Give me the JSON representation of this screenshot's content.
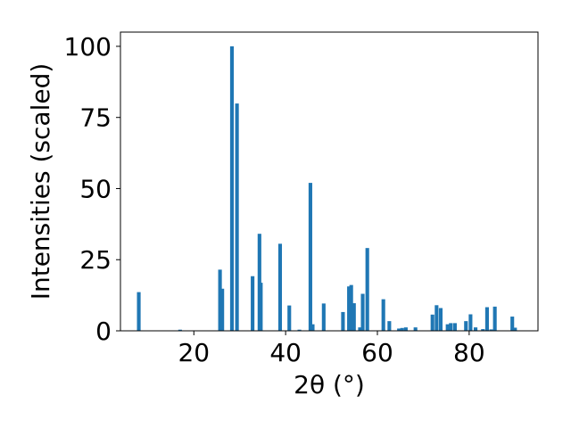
{
  "chart_data": {
    "type": "bar",
    "xlabel": "2θ (°)",
    "ylabel": "Intensities (scaled)",
    "title": "",
    "xlim": [
      4,
      95
    ],
    "ylim": [
      0,
      105
    ],
    "xticks": [
      20,
      40,
      60,
      80
    ],
    "yticks": [
      0,
      25,
      50,
      75,
      100
    ],
    "grid": false,
    "bar_color": "#1f77b4",
    "bar_width_deg": 0.8,
    "x": [
      8.0,
      17.0,
      25.7,
      26.2,
      28.3,
      29.4,
      32.8,
      34.3,
      34.6,
      38.8,
      40.8,
      43.0,
      45.4,
      45.9,
      48.3,
      52.5,
      53.8,
      54.3,
      54.9,
      56.2,
      56.8,
      57.8,
      61.3,
      62.6,
      64.7,
      65.4,
      66.2,
      68.3,
      72.0,
      72.9,
      73.8,
      75.3,
      76.0,
      76.9,
      79.3,
      80.3,
      81.4,
      83.0,
      83.9,
      84.8,
      85.6,
      89.4,
      90.0
    ],
    "values": [
      13.6,
      0.4,
      21.5,
      14.8,
      100.0,
      79.9,
      19.2,
      34.1,
      16.9,
      30.6,
      8.9,
      0.4,
      52.0,
      2.3,
      9.6,
      6.6,
      15.6,
      16.1,
      9.7,
      1.2,
      13.0,
      29.1,
      11.1,
      3.4,
      0.8,
      1.0,
      1.2,
      1.2,
      5.7,
      9.0,
      8.0,
      2.3,
      2.7,
      2.7,
      3.4,
      5.8,
      1.2,
      0.6,
      8.3,
      0.5,
      8.5,
      5.0,
      1.1
    ]
  }
}
